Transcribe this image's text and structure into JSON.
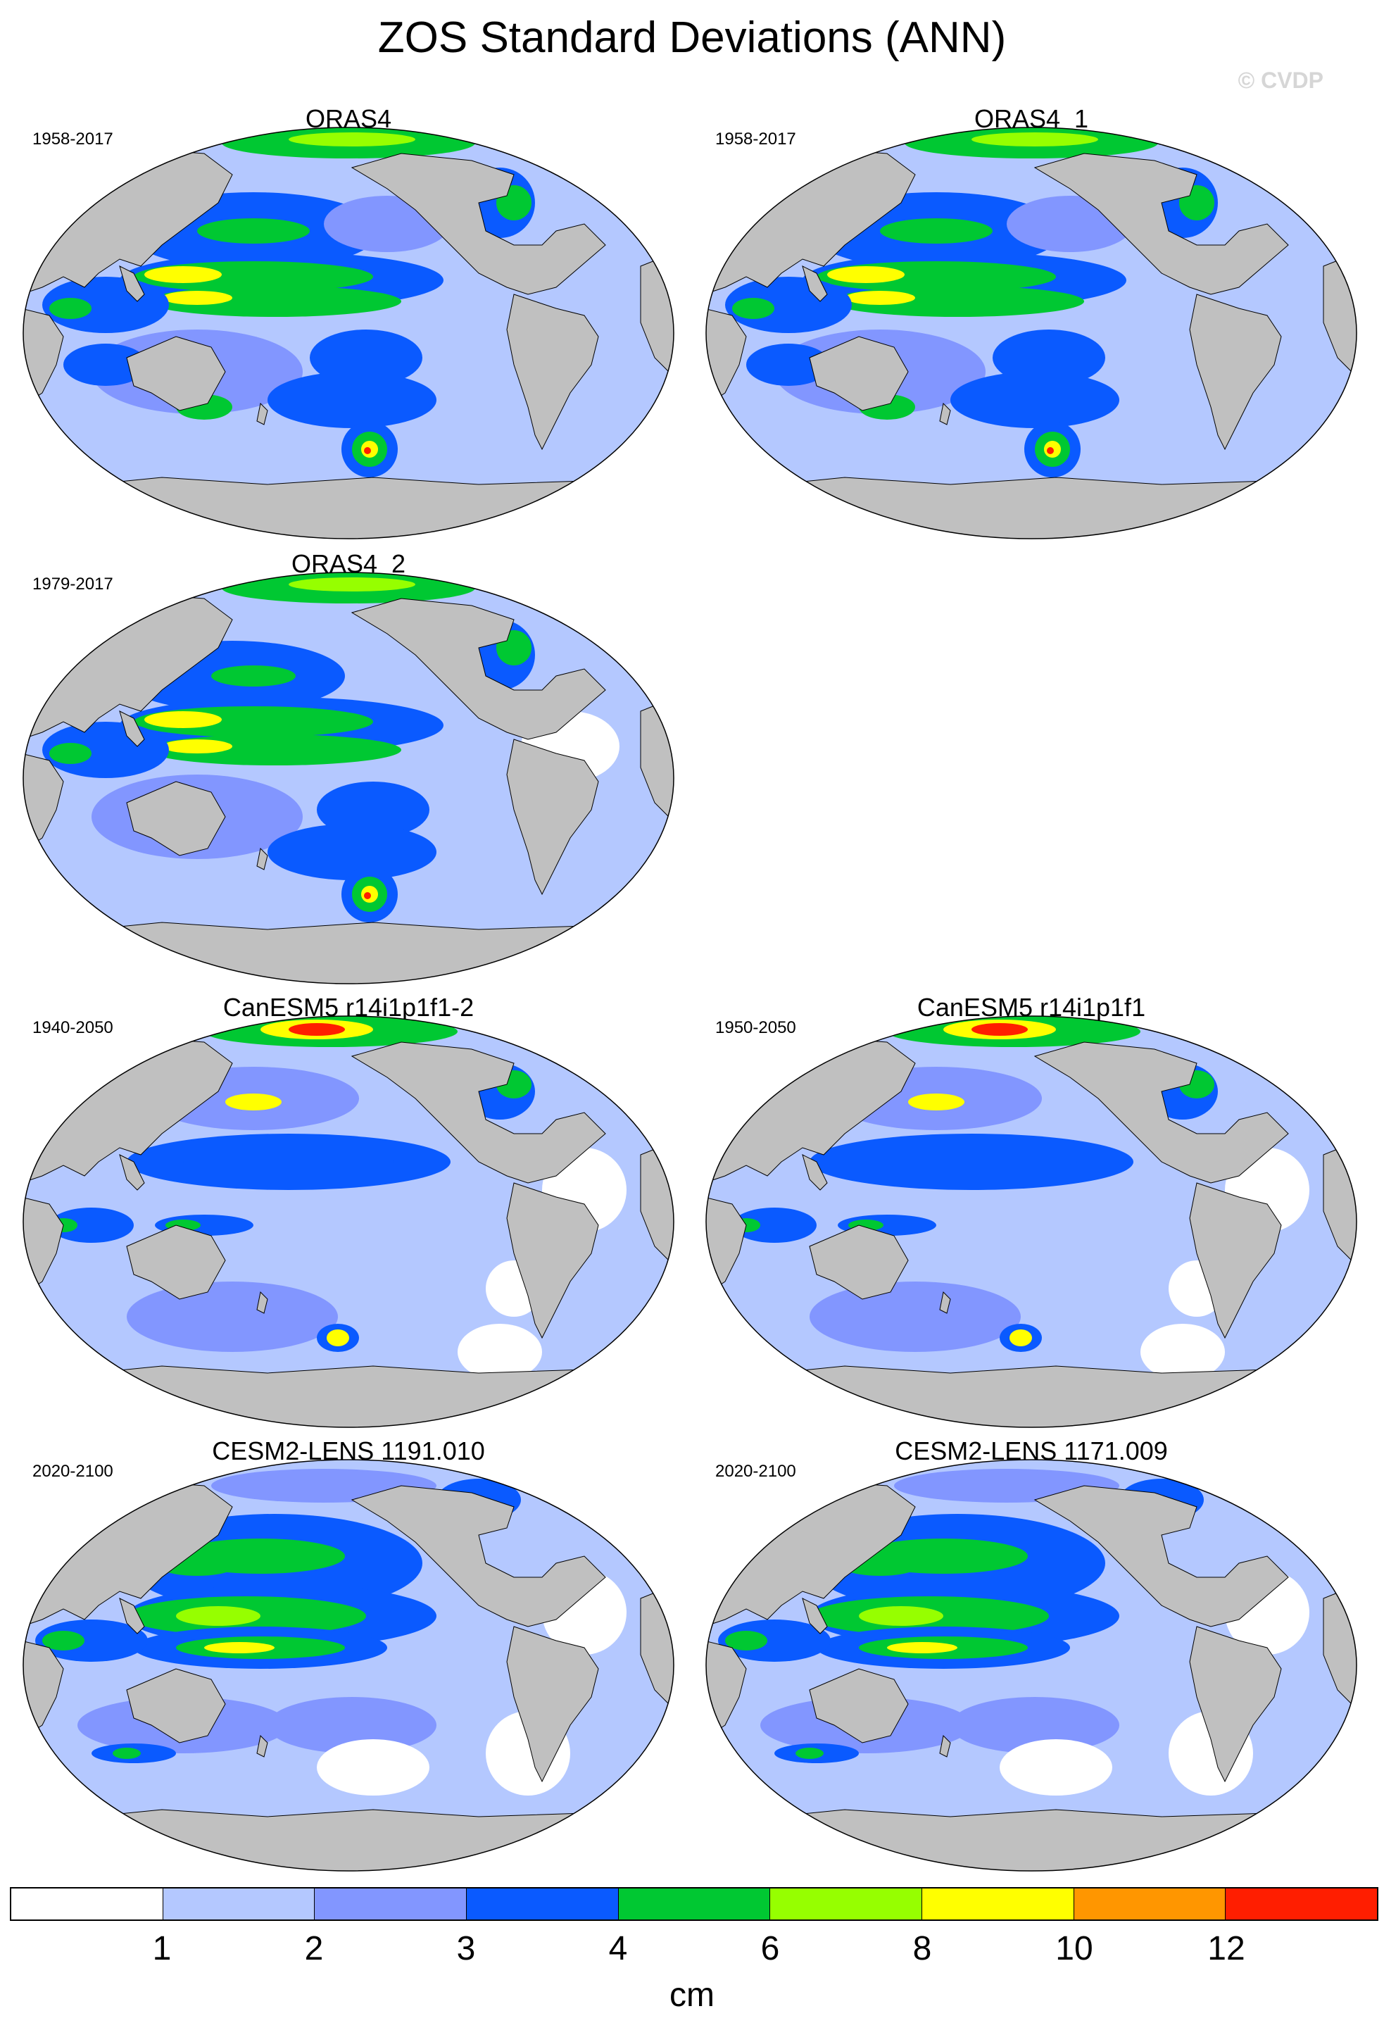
{
  "figure": {
    "title": "ZOS Standard Deviations (ANN)",
    "copyright": "© CVDP"
  },
  "panels": [
    {
      "name": "ORAS4",
      "period": "1958-2017"
    },
    {
      "name": "ORAS4_1",
      "period": "1958-2017"
    },
    {
      "name": "ORAS4_2",
      "period": "1979-2017"
    },
    {
      "name": "CanESM5 r14i1p1f1-2",
      "period": "1940-2050"
    },
    {
      "name": "CanESM5 r14i1p1f1",
      "period": "1950-2050"
    },
    {
      "name": "CESM2-LENS 1191.010",
      "period": "2020-2100"
    },
    {
      "name": "CESM2-LENS 1171.009",
      "period": "2020-2100"
    }
  ],
  "colorbar": {
    "units": "cm",
    "colors": [
      "#ffffff",
      "#b4c8ff",
      "#8296ff",
      "#0a5aff",
      "#00c832",
      "#96ff00",
      "#ffff00",
      "#ff9600",
      "#ff1e00"
    ],
    "labels": [
      "1",
      "2",
      "3",
      "4",
      "6",
      "8",
      "10",
      "12"
    ]
  },
  "map_colors": {
    "land": "#c0c0c0",
    "ocean_base": "#b4c8ff",
    "coast": "#000000"
  }
}
